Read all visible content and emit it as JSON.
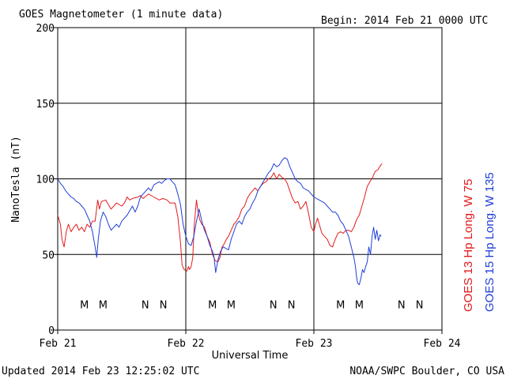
{
  "chart_data": {
    "type": "line",
    "title": "GOES Magnetometer (1 minute data)",
    "begin_label": "Begin:  2014 Feb 21 0000 UTC",
    "xlabel": "Universal Time",
    "ylabel": "NanoTesla (nT)",
    "x_unit": "hours since Feb 21 0000 UTC",
    "xlim": [
      0,
      72
    ],
    "ylim": [
      0,
      200
    ],
    "yticks": [
      0,
      50,
      100,
      150,
      200
    ],
    "xticks": [
      {
        "x": 0,
        "label": "Feb 21"
      },
      {
        "x": 24,
        "label": "Feb 22"
      },
      {
        "x": 48,
        "label": "Feb 23"
      },
      {
        "x": 72,
        "label": "Feb 24"
      }
    ],
    "grid": true,
    "series": [
      {
        "name": "GOES 13 Hp  Long. W 75",
        "color": "#e41a1c",
        "points": [
          [
            0,
            76
          ],
          [
            0.5,
            70
          ],
          [
            0.8,
            60
          ],
          [
            1.2,
            55
          ],
          [
            1.6,
            65
          ],
          [
            2,
            70
          ],
          [
            2.5,
            65
          ],
          [
            3,
            68
          ],
          [
            3.5,
            70
          ],
          [
            4,
            66
          ],
          [
            4.5,
            68
          ],
          [
            5,
            65
          ],
          [
            5.5,
            70
          ],
          [
            6,
            68
          ],
          [
            6.5,
            72
          ],
          [
            7,
            72
          ],
          [
            7.5,
            86
          ],
          [
            7.8,
            80
          ],
          [
            8.2,
            85
          ],
          [
            9,
            86
          ],
          [
            9.5,
            83
          ],
          [
            10,
            80
          ],
          [
            10.5,
            82
          ],
          [
            11,
            84
          ],
          [
            12,
            82
          ],
          [
            12.5,
            84
          ],
          [
            13,
            88
          ],
          [
            13.5,
            86
          ],
          [
            14,
            87
          ],
          [
            15,
            88
          ],
          [
            15.5,
            89
          ],
          [
            16,
            87
          ],
          [
            17,
            90
          ],
          [
            18,
            88
          ],
          [
            19,
            86
          ],
          [
            19.7,
            87
          ],
          [
            20.5,
            86
          ],
          [
            21,
            84
          ],
          [
            21.5,
            84
          ],
          [
            22,
            84
          ],
          [
            22.5,
            75
          ],
          [
            23,
            58
          ],
          [
            23.3,
            43
          ],
          [
            23.7,
            40
          ],
          [
            24.2,
            39
          ],
          [
            24.5,
            42
          ],
          [
            24.7,
            40
          ],
          [
            25,
            42
          ],
          [
            25.3,
            48
          ],
          [
            25.6,
            70
          ],
          [
            26,
            86
          ],
          [
            26.3,
            78
          ],
          [
            26.6,
            73
          ],
          [
            27,
            70
          ],
          [
            27.5,
            68
          ],
          [
            28,
            62
          ],
          [
            28.5,
            58
          ],
          [
            29,
            50
          ],
          [
            29.5,
            46
          ],
          [
            30,
            45
          ],
          [
            30.4,
            48
          ],
          [
            30.8,
            55
          ],
          [
            31.2,
            57
          ],
          [
            31.6,
            60
          ],
          [
            32,
            62
          ],
          [
            32.5,
            66
          ],
          [
            33,
            70
          ],
          [
            33.5,
            72
          ],
          [
            34,
            75
          ],
          [
            34.5,
            80
          ],
          [
            35,
            82
          ],
          [
            35.5,
            87
          ],
          [
            36,
            90
          ],
          [
            36.5,
            92
          ],
          [
            37,
            94
          ],
          [
            37.5,
            92
          ],
          [
            38,
            95
          ],
          [
            38.5,
            97
          ],
          [
            39,
            98
          ],
          [
            39.5,
            100
          ],
          [
            40,
            101
          ],
          [
            40.5,
            104
          ],
          [
            41,
            100
          ],
          [
            41.5,
            103
          ],
          [
            42,
            101
          ],
          [
            42.5,
            100
          ],
          [
            43,
            97
          ],
          [
            43.5,
            92
          ],
          [
            44,
            87
          ],
          [
            44.5,
            84
          ],
          [
            45,
            85
          ],
          [
            45.5,
            80
          ],
          [
            46,
            82
          ],
          [
            46.5,
            85
          ],
          [
            47,
            77
          ],
          [
            47.5,
            68
          ],
          [
            48,
            65
          ],
          [
            48.3,
            70
          ],
          [
            48.7,
            74
          ],
          [
            49,
            70
          ],
          [
            49.5,
            64
          ],
          [
            50,
            62
          ],
          [
            50.5,
            60
          ],
          [
            51,
            56
          ],
          [
            51.5,
            55
          ],
          [
            52,
            60
          ],
          [
            52.5,
            64
          ],
          [
            53,
            65
          ],
          [
            53.5,
            64
          ],
          [
            54,
            66
          ],
          [
            54.5,
            66
          ],
          [
            55,
            65
          ],
          [
            55.5,
            68
          ],
          [
            56,
            73
          ],
          [
            56.5,
            76
          ],
          [
            57,
            82
          ],
          [
            57.5,
            88
          ],
          [
            58,
            95
          ],
          [
            58.5,
            98
          ],
          [
            59,
            101
          ],
          [
            59.5,
            105
          ],
          [
            60,
            106
          ],
          [
            60.5,
            109
          ],
          [
            60.8,
            110
          ]
        ]
      },
      {
        "name": "GOES 15 Hp  Long. W 135",
        "color": "#1f3fd8",
        "points": [
          [
            0,
            100
          ],
          [
            0.5,
            97
          ],
          [
            1,
            95
          ],
          [
            1.5,
            92
          ],
          [
            2,
            90
          ],
          [
            2.5,
            88
          ],
          [
            3,
            87
          ],
          [
            3.5,
            85
          ],
          [
            4,
            84
          ],
          [
            4.5,
            82
          ],
          [
            5,
            80
          ],
          [
            5.5,
            76
          ],
          [
            6,
            72
          ],
          [
            6.5,
            65
          ],
          [
            7,
            55
          ],
          [
            7.3,
            48
          ],
          [
            7.6,
            60
          ],
          [
            8,
            72
          ],
          [
            8.5,
            78
          ],
          [
            9,
            75
          ],
          [
            9.5,
            70
          ],
          [
            10,
            66
          ],
          [
            10.5,
            68
          ],
          [
            11,
            70
          ],
          [
            11.5,
            68
          ],
          [
            12,
            72
          ],
          [
            13,
            76
          ],
          [
            14,
            82
          ],
          [
            14.5,
            78
          ],
          [
            15,
            82
          ],
          [
            15.5,
            88
          ],
          [
            16,
            90
          ],
          [
            16.5,
            92
          ],
          [
            17,
            94
          ],
          [
            17.5,
            92
          ],
          [
            18,
            96
          ],
          [
            18.5,
            97
          ],
          [
            19,
            98
          ],
          [
            19.5,
            97
          ],
          [
            20,
            99
          ],
          [
            20.5,
            100
          ],
          [
            21,
            100
          ],
          [
            21.5,
            98
          ],
          [
            22,
            96
          ],
          [
            22.5,
            90
          ],
          [
            23,
            83
          ],
          [
            23.5,
            70
          ],
          [
            24,
            62
          ],
          [
            24.5,
            57
          ],
          [
            25,
            56
          ],
          [
            25.5,
            62
          ],
          [
            26,
            72
          ],
          [
            26.5,
            80
          ],
          [
            27,
            72
          ],
          [
            27.5,
            66
          ],
          [
            28,
            62
          ],
          [
            28.5,
            56
          ],
          [
            29,
            52
          ],
          [
            29.3,
            48
          ],
          [
            29.6,
            38
          ],
          [
            30,
            46
          ],
          [
            30.5,
            52
          ],
          [
            31,
            55
          ],
          [
            31.5,
            54
          ],
          [
            32,
            53
          ],
          [
            32.5,
            60
          ],
          [
            33,
            65
          ],
          [
            33.5,
            70
          ],
          [
            34,
            72
          ],
          [
            34.5,
            70
          ],
          [
            35,
            75
          ],
          [
            35.5,
            78
          ],
          [
            36,
            80
          ],
          [
            36.5,
            84
          ],
          [
            37,
            87
          ],
          [
            37.5,
            92
          ],
          [
            38,
            95
          ],
          [
            38.5,
            98
          ],
          [
            39,
            101
          ],
          [
            39.5,
            104
          ],
          [
            40,
            106
          ],
          [
            40.5,
            110
          ],
          [
            41,
            108
          ],
          [
            41.5,
            109
          ],
          [
            42,
            112
          ],
          [
            42.5,
            114
          ],
          [
            43,
            113
          ],
          [
            43.5,
            108
          ],
          [
            44,
            104
          ],
          [
            44.5,
            100
          ],
          [
            45,
            98
          ],
          [
            45.5,
            97
          ],
          [
            46,
            94
          ],
          [
            46.5,
            93
          ],
          [
            47,
            92
          ],
          [
            47.5,
            90
          ],
          [
            48,
            88
          ],
          [
            48.5,
            87
          ],
          [
            49,
            86
          ],
          [
            49.5,
            85
          ],
          [
            50,
            84
          ],
          [
            50.5,
            82
          ],
          [
            51,
            80
          ],
          [
            51.5,
            78
          ],
          [
            52,
            78
          ],
          [
            52.5,
            76
          ],
          [
            53,
            72
          ],
          [
            53.5,
            70
          ],
          [
            54,
            66
          ],
          [
            54.5,
            62
          ],
          [
            55,
            55
          ],
          [
            55.5,
            48
          ],
          [
            55.8,
            42
          ],
          [
            56,
            35
          ],
          [
            56.2,
            31
          ],
          [
            56.5,
            30
          ],
          [
            56.8,
            34
          ],
          [
            57.1,
            40
          ],
          [
            57.4,
            38
          ],
          [
            57.7,
            42
          ],
          [
            58,
            45
          ],
          [
            58.3,
            55
          ],
          [
            58.6,
            50
          ],
          [
            58.9,
            62
          ],
          [
            59.2,
            68
          ],
          [
            59.5,
            60
          ],
          [
            59.8,
            66
          ],
          [
            60.1,
            59
          ],
          [
            60.4,
            63
          ],
          [
            60.6,
            62
          ]
        ]
      }
    ],
    "markers": [
      {
        "x": 5.0,
        "label": "M",
        "color": "#e41a1c"
      },
      {
        "x": 8.5,
        "label": "M",
        "color": "#1f3fd8"
      },
      {
        "x": 16.4,
        "label": "N",
        "color": "#e41a1c"
      },
      {
        "x": 19.8,
        "label": "N",
        "color": "#1f3fd8"
      },
      {
        "x": 29.0,
        "label": "M",
        "color": "#e41a1c"
      },
      {
        "x": 32.5,
        "label": "M",
        "color": "#1f3fd8"
      },
      {
        "x": 40.4,
        "label": "N",
        "color": "#e41a1c"
      },
      {
        "x": 43.8,
        "label": "N",
        "color": "#1f3fd8"
      },
      {
        "x": 53.0,
        "label": "M",
        "color": "#e41a1c"
      },
      {
        "x": 56.5,
        "label": "M",
        "color": "#1f3fd8"
      },
      {
        "x": 64.4,
        "label": "N",
        "color": "#e41a1c"
      },
      {
        "x": 67.8,
        "label": "N",
        "color": "#1f3fd8"
      }
    ],
    "marker_y": 17
  },
  "footer": {
    "updated": "Updated 2014 Feb 23 12:25:02 UTC",
    "credit": "NOAA/SWPC Boulder, CO USA"
  }
}
